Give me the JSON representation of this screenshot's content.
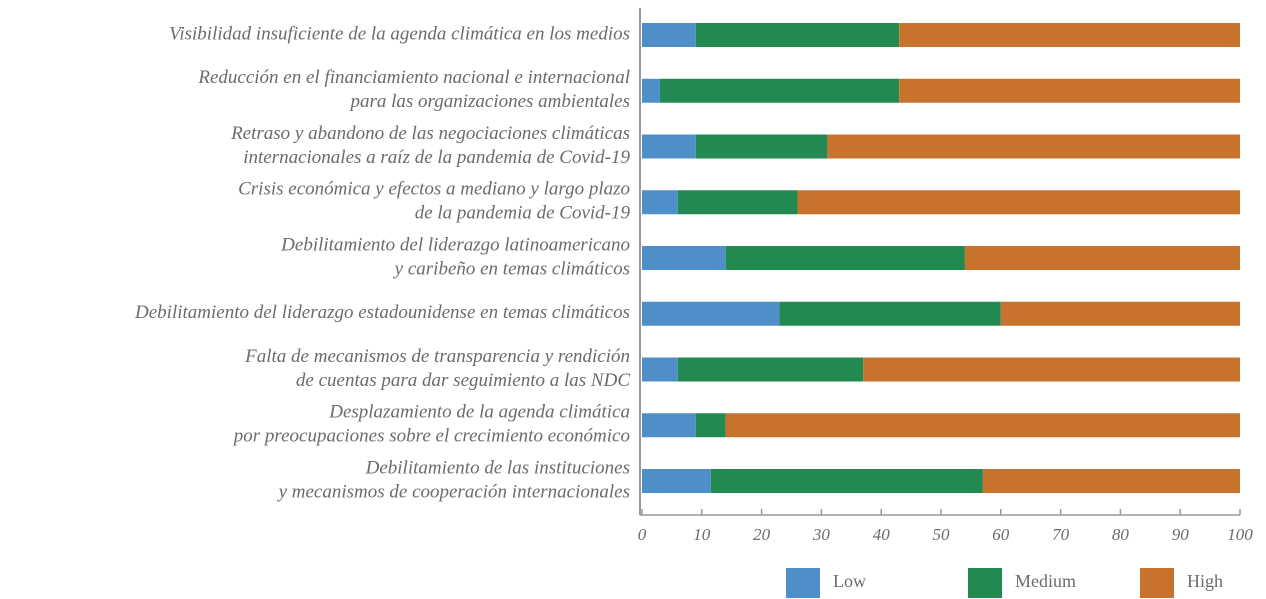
{
  "chart_data": {
    "type": "stacked-bar-horizontal",
    "categories": [
      [
        "Visibilidad insuficiente de la agenda climática en los medios"
      ],
      [
        "Reducción en el financiamiento nacional e internacional",
        "para las organizaciones ambientales"
      ],
      [
        "Retraso y abandono de las negociaciones climáticas",
        "internacionales a raíz de la pandemia de Covid-19"
      ],
      [
        "Crisis económica y efectos a mediano y largo plazo",
        "de la pandemia de Covid-19"
      ],
      [
        "Debilitamiento del liderazgo latinoamericano",
        "y caribeño en temas climáticos"
      ],
      [
        "Debilitamiento del liderazgo estadounidense en temas climáticos"
      ],
      [
        "Falta de mecanismos de transparencia y rendición",
        "de cuentas para dar seguimiento a las NDC"
      ],
      [
        "Desplazamiento de la agenda climática",
        "por preocupaciones sobre el crecimiento económico"
      ],
      [
        "Debilitamiento de las instituciones",
        "y mecanismos de cooperación internacionales"
      ]
    ],
    "series": [
      {
        "name": "Low",
        "color": "#4f8fc9",
        "values": [
          9,
          3,
          9,
          6,
          14,
          23,
          6,
          9,
          11.5
        ]
      },
      {
        "name": "Medium",
        "color": "#228a50",
        "values": [
          34,
          40,
          22,
          20,
          40,
          37,
          31,
          5,
          45.5
        ]
      },
      {
        "name": "High",
        "color": "#c8732d",
        "values": [
          57,
          57,
          69,
          74,
          46,
          40,
          63,
          86,
          43
        ]
      }
    ],
    "xlim": [
      0,
      100
    ],
    "xticks": [
      0,
      10,
      20,
      30,
      40,
      50,
      60,
      70,
      80,
      90,
      100
    ],
    "legend": "bottom-right"
  }
}
